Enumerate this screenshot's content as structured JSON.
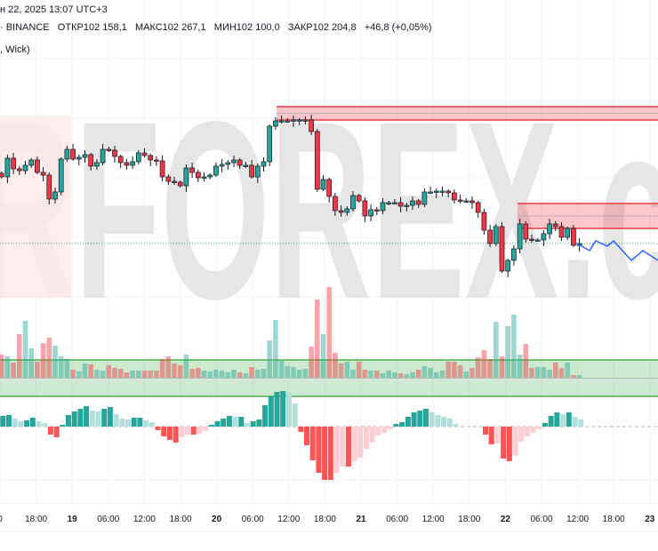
{
  "header": {
    "datetime": "н 22, 2025 13:07 UTC+3",
    "exchange": "· BINANCE",
    "open_label": "ОТКР",
    "open": "102 158,1",
    "high_label": "МАКС",
    "high": "102 267,1",
    "low_label": "МИН",
    "low": "102 100,0",
    "close_label": "ЗАКР",
    "close": "102 204,8",
    "change": "+46,8 (+0,05%)",
    "indicator": ", Wick)"
  },
  "watermark": "RFOREX.c",
  "colors": {
    "up": "#26a69a",
    "down": "#f23645",
    "forecast": "#2962ff",
    "supply_zone": "#f23645",
    "demand_zone": "#4caf50",
    "watermark": "#e6e6e6"
  },
  "x_axis": {
    "ticks": [
      "0",
      "18:00",
      "19",
      "06:00",
      "12:00",
      "18:00",
      "20",
      "06:00",
      "12:00",
      "18:00",
      "21",
      "06:00",
      "12:00",
      "18:00",
      "22",
      "06:00",
      "12:00",
      "18:00",
      "23"
    ]
  },
  "chart_data": {
    "type": "candlestick",
    "symbol_exchange": "BINANCE",
    "last_price": 102204.8,
    "closes": [
      103330,
      103645,
      103465,
      103435,
      103525,
      103615,
      103405,
      103360,
      102955,
      103075,
      103630,
      103795,
      103630,
      103660,
      103705,
      103510,
      103570,
      103795,
      103780,
      103675,
      103570,
      103525,
      103585,
      103735,
      103690,
      103615,
      103600,
      103330,
      103255,
      103240,
      103180,
      103480,
      103405,
      103315,
      103330,
      103360,
      103510,
      103540,
      103570,
      103615,
      103525,
      103525,
      103330,
      103510,
      103585,
      104185,
      104275,
      104275,
      104275,
      104290,
      104290,
      104290,
      104095,
      103120,
      103285,
      103000,
      102760,
      102730,
      102790,
      103015,
      102925,
      102670,
      102775,
      102760,
      102895,
      102895,
      102895,
      102835,
      102850,
      102925,
      102865,
      103075,
      103075,
      103090,
      103090,
      103060,
      102940,
      102925,
      102925,
      102895,
      102730,
      102430,
      102205,
      102490,
      101740,
      101920,
      102115,
      102535,
      102280,
      102265,
      102265,
      102370,
      102535,
      102490,
      102310,
      102460,
      102175,
      102205
    ],
    "volume": [
      26,
      24,
      17,
      49,
      64,
      33,
      18,
      39,
      45,
      36,
      24,
      21,
      9,
      7,
      16,
      15,
      9,
      8,
      14,
      11,
      10,
      6,
      8,
      8,
      8,
      8,
      8,
      21,
      24,
      16,
      14,
      26,
      10,
      11,
      8,
      7,
      9,
      8,
      6,
      9,
      6,
      5,
      12,
      9,
      10,
      42,
      65,
      19,
      13,
      12,
      9,
      10,
      35,
      88,
      49,
      102,
      28,
      16,
      18,
      9,
      18,
      9,
      8,
      8,
      5,
      8,
      6,
      5,
      4,
      6,
      9,
      13,
      11,
      6,
      8,
      18,
      18,
      14,
      7,
      11,
      23,
      31,
      21,
      63,
      24,
      58,
      71,
      26,
      38,
      11,
      12,
      12,
      9,
      17,
      11,
      17,
      3,
      3
    ],
    "oscillator": [
      12,
      13,
      9,
      6,
      7,
      10,
      6,
      4,
      -9,
      -12,
      2,
      13,
      17,
      20,
      23,
      18,
      17,
      20,
      22,
      14,
      9,
      8,
      10,
      10,
      7,
      5,
      -4,
      -11,
      -15,
      -18,
      -12,
      -9,
      -9,
      -8,
      -5,
      2,
      6,
      9,
      12,
      11,
      11,
      4,
      6,
      8,
      24,
      34,
      39,
      40,
      38,
      26,
      -6,
      -21,
      -38,
      -52,
      -60,
      -60,
      -52,
      -45,
      -45,
      -39,
      -35,
      -25,
      -18,
      -10,
      -7,
      -3,
      3,
      5,
      11,
      16,
      18,
      20,
      16,
      13,
      11,
      9,
      3,
      0,
      0,
      0,
      0,
      -9,
      -20,
      -19,
      -36,
      -39,
      -33,
      -17,
      -11,
      -7,
      -3,
      4,
      12,
      16,
      14,
      16,
      11,
      8
    ],
    "supply_zones": [
      {
        "top": 104515,
        "bottom": 104290
      },
      {
        "top": 102880,
        "bottom": 102460
      }
    ],
    "demand_zone": {
      "top": 100240,
      "bottom": 99625
    },
    "grid": true
  }
}
